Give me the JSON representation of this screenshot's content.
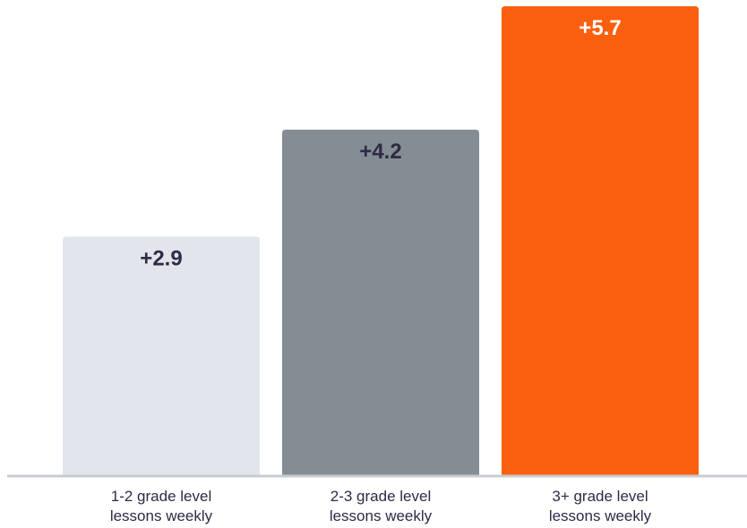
{
  "chart_data": {
    "type": "bar",
    "categories": [
      [
        "1-2 grade level",
        "lessons weekly"
      ],
      [
        "2-3 grade level",
        "lessons weekly"
      ],
      [
        "3+ grade level",
        "lessons weekly"
      ]
    ],
    "values": [
      2.9,
      4.2,
      5.7
    ],
    "value_labels": [
      "+2.9",
      "+4.2",
      "+5.7"
    ],
    "bar_colors": [
      "#e2e6ec",
      "#848d93",
      "#fa5f0f"
    ],
    "value_label_colors": [
      "#2f2a45",
      "#2f2a45",
      "#ffffff"
    ],
    "axis_color": "#c8ccd1",
    "ylim": [
      0,
      5.7
    ],
    "title": "",
    "xlabel": "",
    "ylabel": "",
    "grid": false,
    "legend": "none"
  }
}
